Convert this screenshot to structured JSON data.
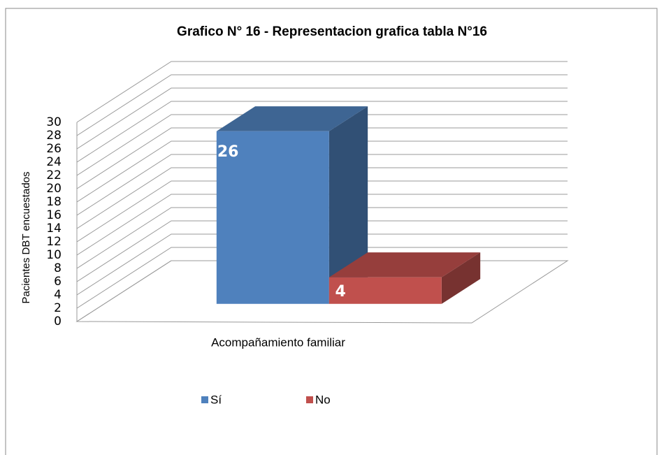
{
  "chart_data": {
    "type": "bar3d",
    "title": "Grafico N° 16 - Representacion grafica tabla N°16",
    "y_label": "Pacientes  DBT encuestados",
    "categories": [
      "Acompañamiento familiar"
    ],
    "series": [
      {
        "name": "Sí",
        "color": "#4f81bd",
        "values": [
          26
        ]
      },
      {
        "name": "No",
        "color": "#c0504d",
        "values": [
          4
        ]
      }
    ],
    "ylim": [
      0,
      30
    ],
    "yticks": [
      0,
      2,
      4,
      6,
      8,
      10,
      12,
      14,
      16,
      18,
      20,
      22,
      24,
      26,
      28,
      30
    ],
    "grid": true,
    "legend": "bottom"
  }
}
